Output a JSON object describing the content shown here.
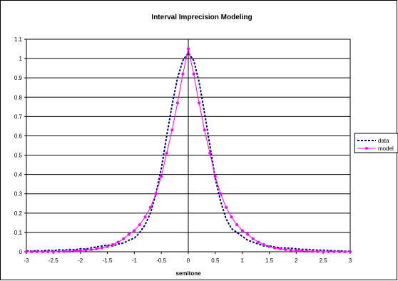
{
  "chart_data": {
    "type": "line",
    "title": "Interval Imprecision Modeling",
    "xlabel": "semitone",
    "ylabel": "",
    "xlim": [
      -3,
      3
    ],
    "ylim": [
      0,
      1.1
    ],
    "x_ticks": [
      "-3",
      "-2.5",
      "-2",
      "-1.5",
      "-1",
      "-0.5",
      "0",
      "0.5",
      "1",
      "1.5",
      "2",
      "2.5",
      "3"
    ],
    "y_ticks": [
      "0",
      "0.1",
      "0.2",
      "0.3",
      "0.4",
      "0.5",
      "0.6",
      "0.7",
      "0.8",
      "0.9",
      "1",
      "1.1"
    ],
    "grid": "horizontal",
    "legend_position": "right",
    "series": [
      {
        "name": "data",
        "color": "#000080",
        "style": "dashed",
        "x": [
          -3,
          -2.9,
          -2.8,
          -2.7,
          -2.6,
          -2.5,
          -2.4,
          -2.3,
          -2.2,
          -2.1,
          -2,
          -1.9,
          -1.8,
          -1.7,
          -1.6,
          -1.5,
          -1.4,
          -1.3,
          -1.2,
          -1.1,
          -1,
          -0.9,
          -0.8,
          -0.7,
          -0.6,
          -0.5,
          -0.4,
          -0.3,
          -0.2,
          -0.1,
          0,
          0.1,
          0.2,
          0.3,
          0.4,
          0.5,
          0.6,
          0.7,
          0.8,
          0.9,
          1,
          1.1,
          1.2,
          1.3,
          1.4,
          1.5,
          1.6,
          1.7,
          1.8,
          1.9,
          2,
          2.1,
          2.2,
          2.3,
          2.4,
          2.5,
          2.6,
          2.7,
          2.8,
          2.9,
          3
        ],
        "y": [
          0.005,
          0.003,
          0.006,
          0.004,
          0.008,
          0.005,
          0.01,
          0.008,
          0.012,
          0.01,
          0.016,
          0.014,
          0.02,
          0.025,
          0.03,
          0.035,
          0.03,
          0.04,
          0.045,
          0.06,
          0.07,
          0.1,
          0.14,
          0.2,
          0.3,
          0.43,
          0.6,
          0.76,
          0.9,
          0.99,
          1.03,
          0.99,
          0.88,
          0.72,
          0.55,
          0.38,
          0.26,
          0.17,
          0.12,
          0.1,
          0.08,
          0.06,
          0.05,
          0.04,
          0.03,
          0.03,
          0.025,
          0.02,
          0.02,
          0.018,
          0.015,
          0.012,
          0.012,
          0.01,
          0.008,
          0.008,
          0.006,
          0.005,
          0.004,
          0.003,
          0.002
        ]
      },
      {
        "name": "model",
        "color": "#ff00ff",
        "style": "solid-markers",
        "x": [
          -3,
          -2.9,
          -2.8,
          -2.7,
          -2.6,
          -2.5,
          -2.4,
          -2.3,
          -2.2,
          -2.1,
          -2,
          -1.9,
          -1.8,
          -1.7,
          -1.6,
          -1.5,
          -1.4,
          -1.3,
          -1.2,
          -1.1,
          -1,
          -0.9,
          -0.8,
          -0.7,
          -0.6,
          -0.5,
          -0.4,
          -0.3,
          -0.2,
          -0.1,
          0,
          0.1,
          0.2,
          0.3,
          0.4,
          0.5,
          0.6,
          0.7,
          0.8,
          0.9,
          1,
          1.1,
          1.2,
          1.3,
          1.4,
          1.5,
          1.6,
          1.7,
          1.8,
          1.9,
          2,
          2.1,
          2.2,
          2.3,
          2.4,
          2.5,
          2.6,
          2.7,
          2.8,
          2.9,
          3
        ],
        "y": [
          0.0,
          0.0,
          0.0,
          0.0,
          0.0,
          0.0,
          0.001,
          0.002,
          0.003,
          0.004,
          0.006,
          0.008,
          0.011,
          0.015,
          0.02,
          0.027,
          0.037,
          0.05,
          0.067,
          0.09,
          0.11,
          0.14,
          0.18,
          0.23,
          0.3,
          0.39,
          0.51,
          0.63,
          0.77,
          0.92,
          1.05,
          0.92,
          0.77,
          0.63,
          0.51,
          0.39,
          0.3,
          0.23,
          0.18,
          0.14,
          0.11,
          0.09,
          0.067,
          0.05,
          0.037,
          0.027,
          0.02,
          0.015,
          0.011,
          0.008,
          0.006,
          0.004,
          0.003,
          0.002,
          0.001,
          0.0,
          0.0,
          0.0,
          0.0,
          0.0,
          0.0
        ]
      }
    ]
  }
}
